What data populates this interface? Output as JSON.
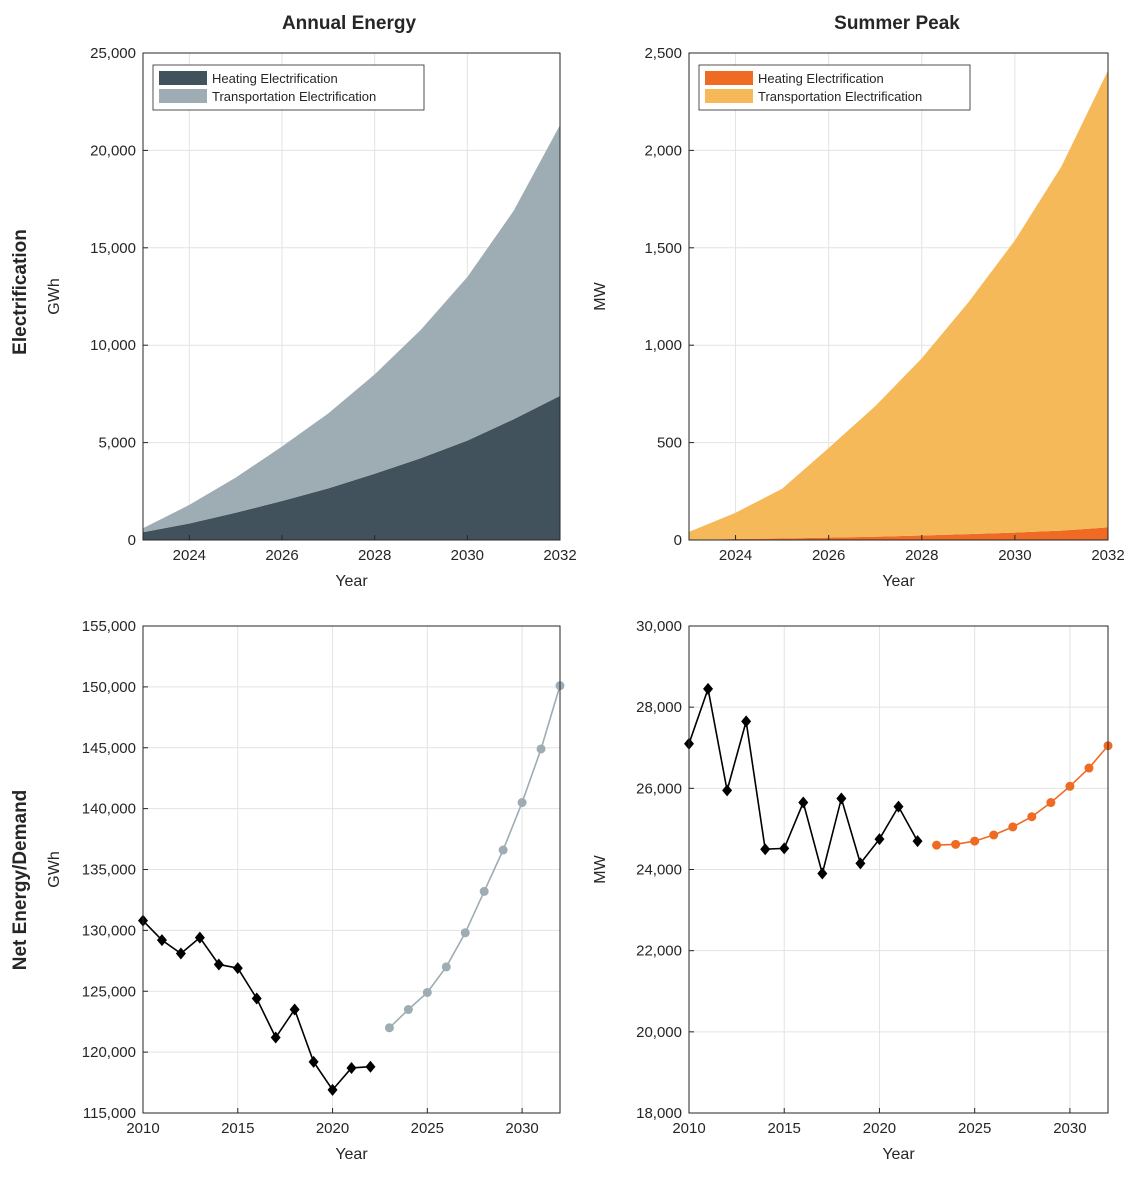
{
  "row_labels": [
    "Electrification",
    "Net Energy/Demand"
  ],
  "chart_data": [
    {
      "type": "area",
      "stacked": true,
      "title": "Annual Energy",
      "xlabel": "Year",
      "ylabel": "GWh",
      "xlim": [
        2023,
        2032
      ],
      "ylim": [
        0,
        25000
      ],
      "xticks": [
        2024,
        2026,
        2028,
        2030,
        2032
      ],
      "yticks": [
        0,
        5000,
        10000,
        15000,
        20000,
        25000
      ],
      "ytick_labels": [
        "0",
        "5,000",
        "10,000",
        "15,000",
        "20,000",
        "25,000"
      ],
      "grid": true,
      "legend": "top-left",
      "x": [
        2023,
        2024,
        2025,
        2026,
        2027,
        2028,
        2029,
        2030,
        2031,
        2032
      ],
      "series": [
        {
          "name": "Heating Electrification",
          "color": "#41525c",
          "values": [
            400,
            850,
            1400,
            2000,
            2650,
            3400,
            4200,
            5100,
            6200,
            7400
          ]
        },
        {
          "name": "Transportation Electrification",
          "color": "#9eacb3",
          "values": [
            200,
            950,
            1800,
            2800,
            3850,
            5100,
            6600,
            8400,
            10700,
            13900
          ]
        }
      ]
    },
    {
      "type": "area",
      "stacked": true,
      "title": "Summer Peak",
      "xlabel": "Year",
      "ylabel": "MW",
      "xlim": [
        2023,
        2032
      ],
      "ylim": [
        0,
        2500
      ],
      "xticks": [
        2024,
        2026,
        2028,
        2030,
        2032
      ],
      "yticks": [
        0,
        500,
        1000,
        1500,
        2000,
        2500
      ],
      "ytick_labels": [
        "0",
        "500",
        "1,000",
        "1,500",
        "2,000",
        "2,500"
      ],
      "grid": true,
      "legend": "top-left",
      "x": [
        2023,
        2024,
        2025,
        2026,
        2027,
        2028,
        2029,
        2030,
        2031,
        2032
      ],
      "series": [
        {
          "name": "Heating Electrification",
          "color": "#ef6a22",
          "values": [
            2,
            5,
            8,
            12,
            17,
            23,
            30,
            38,
            48,
            65
          ]
        },
        {
          "name": "Transportation Electrification",
          "color": "#f6b95a",
          "values": [
            40,
            135,
            255,
            460,
            670,
            910,
            1190,
            1500,
            1870,
            2345
          ]
        }
      ]
    },
    {
      "type": "line",
      "xlabel": "Year",
      "ylabel": "GWh",
      "xlim": [
        2010,
        2032
      ],
      "ylim": [
        115000,
        155000
      ],
      "xticks": [
        2010,
        2015,
        2020,
        2025,
        2030
      ],
      "yticks": [
        115000,
        120000,
        125000,
        130000,
        135000,
        140000,
        145000,
        150000,
        155000
      ],
      "ytick_labels": [
        "115,000",
        "120,000",
        "125,000",
        "130,000",
        "135,000",
        "140,000",
        "145,000",
        "150,000",
        "155,000"
      ],
      "grid": true,
      "series": [
        {
          "color": "#000000",
          "marker": "diamond",
          "x": [
            2010,
            2011,
            2012,
            2013,
            2014,
            2015,
            2016,
            2017,
            2018,
            2019,
            2020,
            2021,
            2022
          ],
          "values": [
            130800,
            129200,
            128100,
            129400,
            127200,
            126900,
            124400,
            121200,
            123500,
            119200,
            116900,
            118700,
            118800
          ]
        },
        {
          "color": "#9eacb3",
          "marker": "circle",
          "x": [
            2023,
            2024,
            2025,
            2026,
            2027,
            2028,
            2029,
            2030,
            2031,
            2032
          ],
          "values": [
            122000,
            123500,
            124900,
            127000,
            129800,
            133200,
            136600,
            140500,
            144900,
            150100
          ]
        }
      ]
    },
    {
      "type": "line",
      "xlabel": "Year",
      "ylabel": "MW",
      "xlim": [
        2010,
        2032
      ],
      "ylim": [
        18000,
        30000
      ],
      "xticks": [
        2010,
        2015,
        2020,
        2025,
        2030
      ],
      "yticks": [
        18000,
        20000,
        22000,
        24000,
        26000,
        28000,
        30000
      ],
      "ytick_labels": [
        "18,000",
        "20,000",
        "22,000",
        "24,000",
        "26,000",
        "28,000",
        "30,000"
      ],
      "grid": true,
      "series": [
        {
          "color": "#000000",
          "marker": "diamond",
          "x": [
            2010,
            2011,
            2012,
            2013,
            2014,
            2015,
            2016,
            2017,
            2018,
            2019,
            2020,
            2021,
            2022
          ],
          "values": [
            27100,
            28450,
            25950,
            27650,
            24500,
            24520,
            25650,
            23900,
            25750,
            24150,
            24750,
            25550,
            24700
          ]
        },
        {
          "color": "#ef6a22",
          "marker": "circle",
          "x": [
            2023,
            2024,
            2025,
            2026,
            2027,
            2028,
            2029,
            2030,
            2031,
            2032
          ],
          "values": [
            24600,
            24620,
            24700,
            24850,
            25050,
            25300,
            25650,
            26050,
            26500,
            27050
          ]
        }
      ]
    }
  ]
}
